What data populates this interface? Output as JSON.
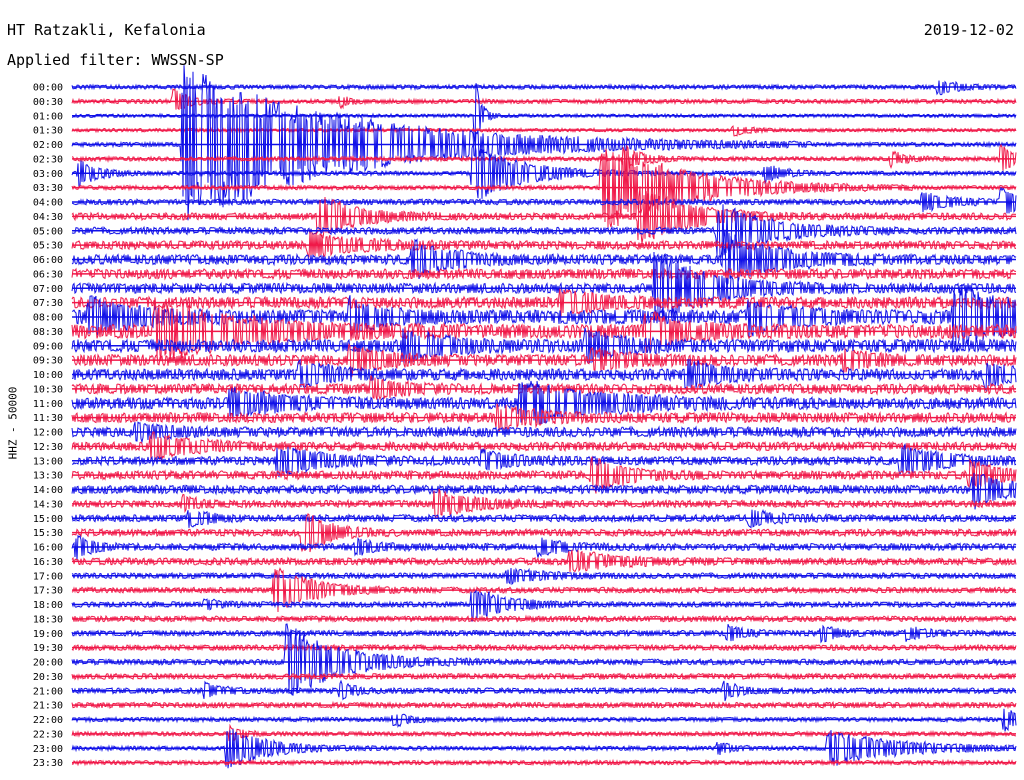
{
  "header": {
    "station": "HT Ratzakli, Kefalonia",
    "date": "2019-12-02",
    "filter": "Applied filter: WWSSN-SP"
  },
  "chart_data": {
    "type": "line",
    "title": "HT Ratzakli, Kefalonia",
    "ylabel": "HHZ - 50000",
    "colors": [
      "#1010e8",
      "#f01848"
    ],
    "rows": [
      "00:00",
      "00:30",
      "01:00",
      "01:30",
      "02:00",
      "02:30",
      "03:00",
      "03:30",
      "04:00",
      "04:30",
      "05:00",
      "05:30",
      "06:00",
      "06:30",
      "07:00",
      "07:30",
      "08:00",
      "08:30",
      "09:00",
      "09:30",
      "10:00",
      "10:30",
      "11:00",
      "11:30",
      "12:00",
      "12:30",
      "13:00",
      "13:30",
      "14:00",
      "14:30",
      "15:00",
      "15:30",
      "16:00",
      "16:30",
      "17:00",
      "17:30",
      "18:00",
      "18:30",
      "19:00",
      "19:30",
      "20:00",
      "20:30",
      "21:00",
      "21:30",
      "22:00",
      "22:30",
      "23:00",
      "23:30"
    ],
    "xlim": [
      0,
      30
    ],
    "xunit": "minutes",
    "noise_level": [
      1.5,
      1.5,
      1.2,
      1.2,
      1.5,
      1.5,
      1.5,
      1.5,
      2,
      2.5,
      2.5,
      3,
      3.5,
      3.5,
      3.5,
      4,
      5,
      5,
      4.5,
      4,
      4,
      3.5,
      4,
      3.5,
      3.5,
      3,
      3,
      3,
      3,
      2.5,
      2.5,
      2.5,
      2.5,
      2.5,
      2,
      2,
      2,
      2,
      2,
      2,
      2,
      2,
      2,
      2,
      1.5,
      1.5,
      1.5,
      1.5
    ],
    "events": [
      {
        "row": 0,
        "t": 27.5,
        "amp": 8,
        "dur": 0.6
      },
      {
        "row": 1,
        "t": 3.2,
        "amp": 12,
        "dur": 0.5
      },
      {
        "row": 1,
        "t": 8.5,
        "amp": 6,
        "dur": 0.3
      },
      {
        "row": 2,
        "t": 12.8,
        "amp": 40,
        "dur": 0.2
      },
      {
        "row": 3,
        "t": 21,
        "amp": 6,
        "dur": 0.5
      },
      {
        "row": 4,
        "t": 3.5,
        "amp": 80,
        "dur": 5
      },
      {
        "row": 5,
        "t": 17.5,
        "amp": 14,
        "dur": 0.6
      },
      {
        "row": 5,
        "t": 26,
        "amp": 8,
        "dur": 0.5
      },
      {
        "row": 5,
        "t": 29.5,
        "amp": 14,
        "dur": 0.5
      },
      {
        "row": 6,
        "t": 0.2,
        "amp": 14,
        "dur": 0.6
      },
      {
        "row": 6,
        "t": 12.7,
        "amp": 30,
        "dur": 1.5
      },
      {
        "row": 6,
        "t": 22,
        "amp": 10,
        "dur": 0.6
      },
      {
        "row": 7,
        "t": 16.8,
        "amp": 50,
        "dur": 2.5
      },
      {
        "row": 8,
        "t": 29.5,
        "amp": 14,
        "dur": 0.7
      },
      {
        "row": 8,
        "t": 27,
        "amp": 10,
        "dur": 0.8
      },
      {
        "row": 9,
        "t": 7.8,
        "amp": 22,
        "dur": 1.2
      },
      {
        "row": 9,
        "t": 18,
        "amp": 30,
        "dur": 1.5
      },
      {
        "row": 10,
        "t": 20.5,
        "amp": 30,
        "dur": 1.5
      },
      {
        "row": 11,
        "t": 7.5,
        "amp": 12,
        "dur": 1.5
      },
      {
        "row": 12,
        "t": 10.8,
        "amp": 18,
        "dur": 1.2
      },
      {
        "row": 12,
        "t": 20.7,
        "amp": 28,
        "dur": 1.5
      },
      {
        "row": 14,
        "t": 18.5,
        "amp": 40,
        "dur": 1.6
      },
      {
        "row": 15,
        "t": 15.5,
        "amp": 12,
        "dur": 1.2
      },
      {
        "row": 16,
        "t": 0.5,
        "amp": 20,
        "dur": 1.2
      },
      {
        "row": 16,
        "t": 8.8,
        "amp": 16,
        "dur": 1.0
      },
      {
        "row": 16,
        "t": 21.5,
        "amp": 18,
        "dur": 1.2
      },
      {
        "row": 16,
        "t": 28,
        "amp": 30,
        "dur": 2.5
      },
      {
        "row": 17,
        "t": 2.6,
        "amp": 32,
        "dur": 2.5
      },
      {
        "row": 17,
        "t": 18.2,
        "amp": 18,
        "dur": 1.2
      },
      {
        "row": 18,
        "t": 10.5,
        "amp": 16,
        "dur": 1.2
      },
      {
        "row": 18,
        "t": 16.3,
        "amp": 16,
        "dur": 1.0
      },
      {
        "row": 19,
        "t": 8.8,
        "amp": 14,
        "dur": 1.0
      },
      {
        "row": 19,
        "t": 16.5,
        "amp": 10,
        "dur": 1.0
      },
      {
        "row": 19,
        "t": 24.5,
        "amp": 10,
        "dur": 0.8
      },
      {
        "row": 20,
        "t": 7.2,
        "amp": 12,
        "dur": 1.0
      },
      {
        "row": 20,
        "t": 19.5,
        "amp": 14,
        "dur": 1.0
      },
      {
        "row": 20,
        "t": 29,
        "amp": 12,
        "dur": 0.8
      },
      {
        "row": 21,
        "t": 9.5,
        "amp": 10,
        "dur": 1.0
      },
      {
        "row": 22,
        "t": 5.0,
        "amp": 14,
        "dur": 1.5
      },
      {
        "row": 22,
        "t": 14.2,
        "amp": 22,
        "dur": 2.5
      },
      {
        "row": 23,
        "t": 13.5,
        "amp": 12,
        "dur": 1.2
      },
      {
        "row": 24,
        "t": 2.0,
        "amp": 8,
        "dur": 1.0
      },
      {
        "row": 25,
        "t": 2.5,
        "amp": 14,
        "dur": 1.2
      },
      {
        "row": 26,
        "t": 6.5,
        "amp": 14,
        "dur": 1.5
      },
      {
        "row": 26,
        "t": 13.0,
        "amp": 10,
        "dur": 1.0
      },
      {
        "row": 26,
        "t": 26.3,
        "amp": 14,
        "dur": 1.4
      },
      {
        "row": 27,
        "t": 16.5,
        "amp": 18,
        "dur": 1.0
      },
      {
        "row": 27,
        "t": 28.5,
        "amp": 14,
        "dur": 1.0
      },
      {
        "row": 28,
        "t": 28.6,
        "amp": 18,
        "dur": 1.0
      },
      {
        "row": 29,
        "t": 11.5,
        "amp": 14,
        "dur": 1.2
      },
      {
        "row": 29,
        "t": 3.5,
        "amp": 8,
        "dur": 0.5
      },
      {
        "row": 30,
        "t": 3.7,
        "amp": 9,
        "dur": 0.6
      },
      {
        "row": 30,
        "t": 21.5,
        "amp": 8,
        "dur": 0.8
      },
      {
        "row": 31,
        "t": 7.3,
        "amp": 24,
        "dur": 0.8
      },
      {
        "row": 32,
        "t": 0.1,
        "amp": 12,
        "dur": 0.5
      },
      {
        "row": 32,
        "t": 9.0,
        "amp": 8,
        "dur": 0.6
      },
      {
        "row": 32,
        "t": 14.8,
        "amp": 8,
        "dur": 0.8
      },
      {
        "row": 33,
        "t": 15.8,
        "amp": 10,
        "dur": 1.5
      },
      {
        "row": 34,
        "t": 13.8,
        "amp": 8,
        "dur": 1.0
      },
      {
        "row": 35,
        "t": 6.4,
        "amp": 24,
        "dur": 1.2
      },
      {
        "row": 36,
        "t": 12.7,
        "amp": 18,
        "dur": 1.0
      },
      {
        "row": 36,
        "t": 4.2,
        "amp": 5,
        "dur": 0.5
      },
      {
        "row": 38,
        "t": 20.8,
        "amp": 8,
        "dur": 0.5
      },
      {
        "row": 38,
        "t": 23.8,
        "amp": 8,
        "dur": 0.6
      },
      {
        "row": 38,
        "t": 26.5,
        "amp": 7,
        "dur": 0.6
      },
      {
        "row": 40,
        "t": 6.8,
        "amp": 40,
        "dur": 1.6
      },
      {
        "row": 42,
        "t": 4.2,
        "amp": 8,
        "dur": 0.5
      },
      {
        "row": 42,
        "t": 20.7,
        "amp": 9,
        "dur": 0.5
      },
      {
        "row": 42,
        "t": 8.5,
        "amp": 9,
        "dur": 0.4
      },
      {
        "row": 44,
        "t": 10.2,
        "amp": 8,
        "dur": 0.5
      },
      {
        "row": 44,
        "t": 29.6,
        "amp": 12,
        "dur": 0.6
      },
      {
        "row": 45,
        "t": 5.0,
        "amp": 8,
        "dur": 0.4
      },
      {
        "row": 46,
        "t": 4.9,
        "amp": 22,
        "dur": 1.2
      },
      {
        "row": 46,
        "t": 24.0,
        "amp": 18,
        "dur": 2.2
      },
      {
        "row": 46,
        "t": 20.5,
        "amp": 6,
        "dur": 0.5
      }
    ]
  }
}
